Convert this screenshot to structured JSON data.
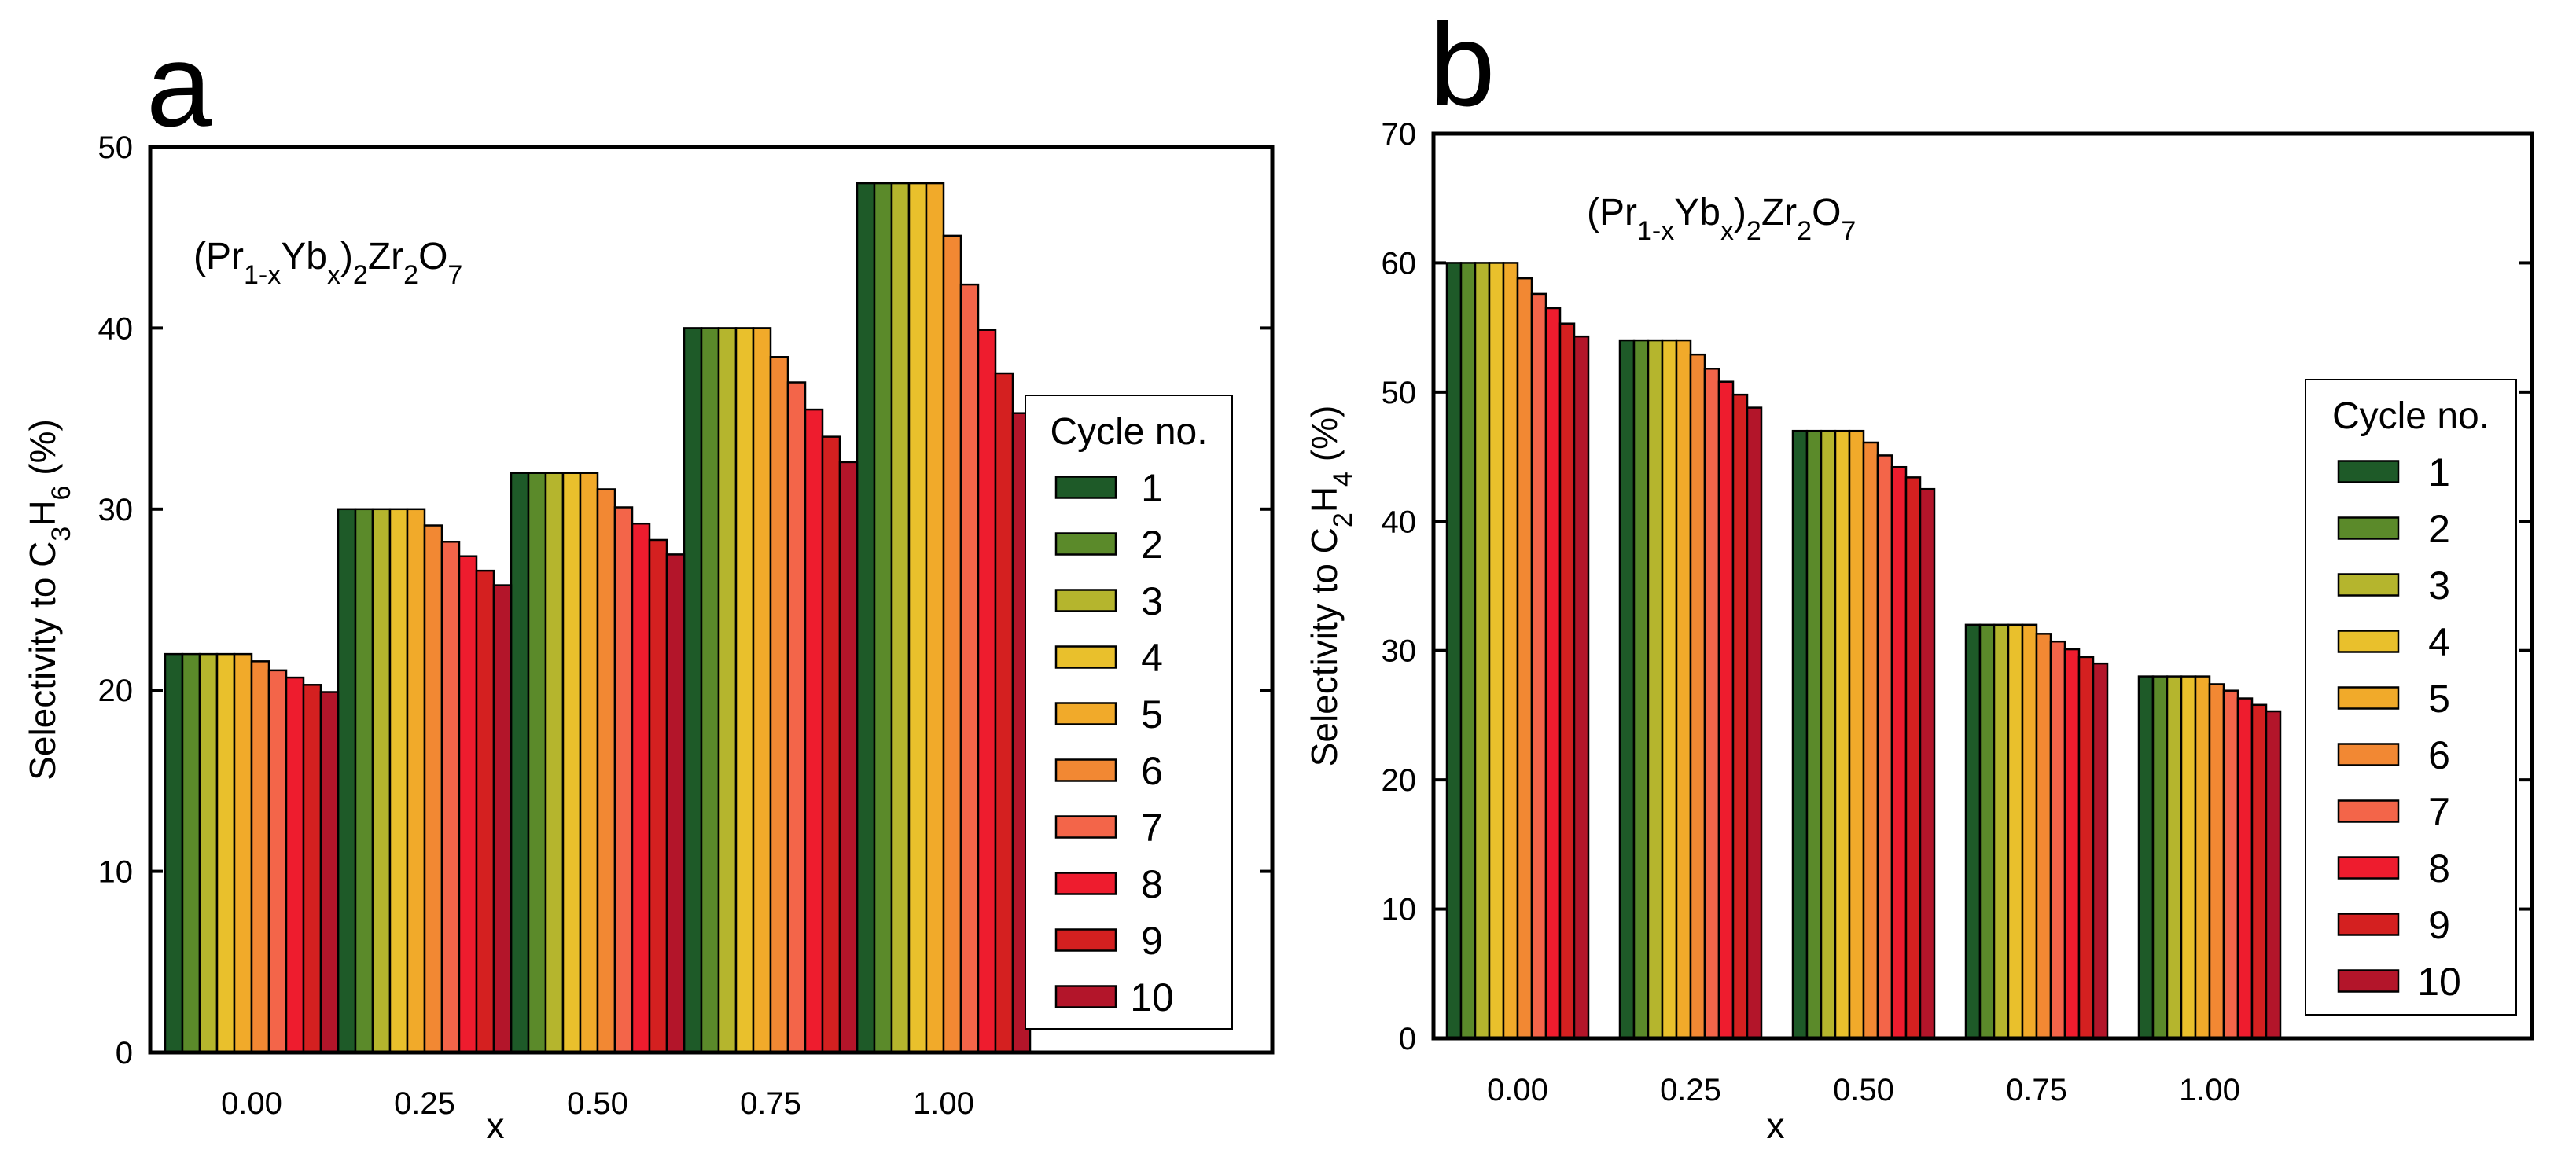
{
  "palette": [
    "#1e5a28",
    "#5b8a2a",
    "#b5b52d",
    "#e9c02c",
    "#f1aa2a",
    "#f28833",
    "#f36549",
    "#ee1c2e",
    "#d42020",
    "#b3152a"
  ],
  "chart_data": [
    {
      "type": "bar",
      "panel_label": "a",
      "formula": {
        "p1": "(Pr",
        "s1": "1-x",
        "p2": "Yb",
        "s2": "x",
        "p3": ")",
        "s3": "2",
        "p4": "Zr",
        "s4": "2",
        "p5": "O",
        "s5": "7"
      },
      "xlabel": "x",
      "ylabel": {
        "pre": "Selectivity to C",
        "s1": "3",
        "mid": "H",
        "s2": "6",
        "post": " (%)"
      },
      "ylim": [
        0,
        50
      ],
      "yticks": [
        0,
        10,
        20,
        30,
        40,
        50
      ],
      "ytick_labels": [
        "0",
        "10",
        "20",
        "30",
        "40",
        "50"
      ],
      "categories": [
        "0.00",
        "0.25",
        "0.50",
        "0.75",
        "1.00"
      ],
      "legend": {
        "title": "Cycle no.",
        "labels": [
          "1",
          "2",
          "3",
          "4",
          "5",
          "6",
          "7",
          "8",
          "9",
          "10"
        ]
      },
      "series": [
        {
          "name": "1",
          "values": [
            22,
            30,
            32,
            40,
            48
          ]
        },
        {
          "name": "2",
          "values": [
            22,
            30,
            32,
            40,
            48
          ]
        },
        {
          "name": "3",
          "values": [
            22,
            30,
            32,
            40,
            48
          ]
        },
        {
          "name": "4",
          "values": [
            22,
            30,
            32,
            40,
            48
          ]
        },
        {
          "name": "5",
          "values": [
            22,
            30,
            32,
            40,
            48
          ]
        },
        {
          "name": "6",
          "values": [
            21.6,
            29.1,
            31.1,
            38.4,
            45.1
          ]
        },
        {
          "name": "7",
          "values": [
            21.1,
            28.2,
            30.1,
            37.0,
            42.4
          ]
        },
        {
          "name": "8",
          "values": [
            20.7,
            27.4,
            29.2,
            35.5,
            39.9
          ]
        },
        {
          "name": "9",
          "values": [
            20.3,
            26.6,
            28.3,
            34.0,
            37.5
          ]
        },
        {
          "name": "10",
          "values": [
            19.9,
            25.8,
            27.5,
            32.6,
            35.3
          ]
        }
      ]
    },
    {
      "type": "bar",
      "panel_label": "b",
      "formula": {
        "p1": "(Pr",
        "s1": "1-x",
        "p2": "Yb",
        "s2": "x",
        "p3": ")",
        "s3": "2",
        "p4": "Zr",
        "s4": "2",
        "p5": "O",
        "s5": "7"
      },
      "xlabel": "x",
      "ylabel": {
        "pre": "Selectivity to C",
        "s1": "2",
        "mid": "H",
        "s2": "4",
        "post": " (%)"
      },
      "ylim": [
        0,
        70
      ],
      "yticks": [
        0,
        10,
        20,
        30,
        40,
        50,
        60,
        70
      ],
      "ytick_labels": [
        "0",
        "10",
        "20",
        "30",
        "40",
        "50",
        "60",
        "70"
      ],
      "categories": [
        "0.00",
        "0.25",
        "0.50",
        "0.75",
        "1.00"
      ],
      "legend": {
        "title": "Cycle no.",
        "labels": [
          "1",
          "2",
          "3",
          "4",
          "5",
          "6",
          "7",
          "8",
          "9",
          "10"
        ]
      },
      "series": [
        {
          "name": "1",
          "values": [
            60,
            54,
            47,
            32,
            28
          ]
        },
        {
          "name": "2",
          "values": [
            60,
            54,
            47,
            32,
            28
          ]
        },
        {
          "name": "3",
          "values": [
            60,
            54,
            47,
            32,
            28
          ]
        },
        {
          "name": "4",
          "values": [
            60,
            54,
            47,
            32,
            28
          ]
        },
        {
          "name": "5",
          "values": [
            60,
            54,
            47,
            32,
            28
          ]
        },
        {
          "name": "6",
          "values": [
            58.8,
            52.9,
            46.1,
            31.3,
            27.4
          ]
        },
        {
          "name": "7",
          "values": [
            57.6,
            51.8,
            45.1,
            30.7,
            26.9
          ]
        },
        {
          "name": "8",
          "values": [
            56.5,
            50.8,
            44.2,
            30.1,
            26.3
          ]
        },
        {
          "name": "9",
          "values": [
            55.3,
            49.8,
            43.4,
            29.5,
            25.8
          ]
        },
        {
          "name": "10",
          "values": [
            54.3,
            48.8,
            42.5,
            29.0,
            25.3
          ]
        }
      ]
    }
  ]
}
